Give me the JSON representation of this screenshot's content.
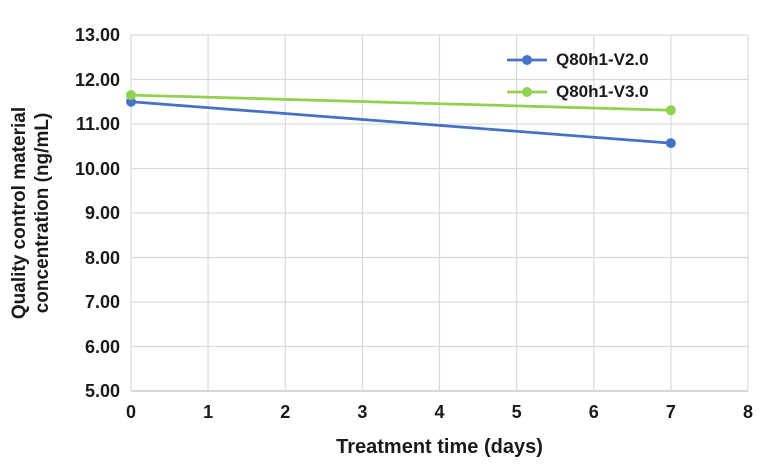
{
  "chart_data": {
    "type": "line",
    "title": "",
    "xlabel": "Treatment time (days)",
    "ylabel": "Quality control material concentration (ng/mL)",
    "ylabel_lines": [
      "Quality control material",
      "concentration (ng/mL)"
    ],
    "series": [
      {
        "name": "Q80h1-V2.0",
        "color": "#4472C4",
        "x": [
          0,
          7
        ],
        "values": [
          11.5,
          10.57
        ]
      },
      {
        "name": "Q80h1-V3.0",
        "color": "#92D050",
        "x": [
          0,
          7
        ],
        "values": [
          11.65,
          11.31
        ]
      }
    ],
    "xlim": [
      0,
      8
    ],
    "ylim": [
      5,
      13
    ],
    "x_tick_step": 1,
    "y_tick_step": 1,
    "x_tick_labels": [
      "0",
      "1",
      "2",
      "3",
      "4",
      "5",
      "6",
      "7",
      "8"
    ],
    "y_tick_labels": [
      "5.00",
      "6.00",
      "7.00",
      "8.00",
      "9.00",
      "10.00",
      "11.00",
      "12.00",
      "13.00"
    ],
    "grid": true,
    "legend_position": "top-right-inside",
    "gridline_color": "#D9D9D9",
    "axis_line_color": "#BFBFBF",
    "text_color": "#1A1A1A",
    "background_color": "#FFFFFF",
    "marker": "circle",
    "marker_radius": 5,
    "line_width": 2.75
  },
  "legend": {
    "items": [
      {
        "label": "Q80h1-V2.0"
      },
      {
        "label": "Q80h1-V3.0"
      }
    ]
  }
}
